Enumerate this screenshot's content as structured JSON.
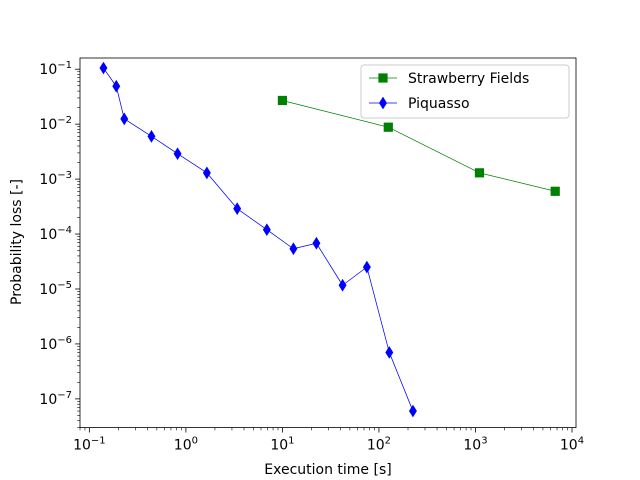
{
  "chart_data": {
    "type": "line",
    "title": "",
    "xlabel": "Execution time [s]",
    "ylabel": "Probability loss [-]",
    "xscale": "log",
    "yscale": "log",
    "xlim": [
      0.08,
      11000
    ],
    "ylim": [
      3e-08,
      0.16
    ],
    "xticks": [
      {
        "exp": -1,
        "base": "10",
        "sup": "−1"
      },
      {
        "exp": 0,
        "base": "10",
        "sup": "0"
      },
      {
        "exp": 1,
        "base": "10",
        "sup": "1"
      },
      {
        "exp": 2,
        "base": "10",
        "sup": "2"
      },
      {
        "exp": 3,
        "base": "10",
        "sup": "3"
      },
      {
        "exp": 4,
        "base": "10",
        "sup": "4"
      }
    ],
    "yticks": [
      {
        "exp": -7,
        "base": "10",
        "sup": "−7"
      },
      {
        "exp": -6,
        "base": "10",
        "sup": "−6"
      },
      {
        "exp": -5,
        "base": "10",
        "sup": "−5"
      },
      {
        "exp": -4,
        "base": "10",
        "sup": "−4"
      },
      {
        "exp": -3,
        "base": "10",
        "sup": "−3"
      },
      {
        "exp": -2,
        "base": "10",
        "sup": "−2"
      },
      {
        "exp": -1,
        "base": "10",
        "sup": "−1"
      }
    ],
    "legend_position": "top-right",
    "series": [
      {
        "name": "Strawberry Fields",
        "color": "#008000",
        "marker": "square",
        "x": [
          10,
          125,
          1100,
          6700
        ],
        "y": [
          0.027,
          0.0088,
          0.0013,
          0.0006
        ]
      },
      {
        "name": "Piquasso",
        "color": "#0000ff",
        "marker": "thin_diamond",
        "x": [
          0.14,
          0.19,
          0.23,
          0.44,
          0.82,
          1.65,
          3.4,
          6.9,
          13,
          22.5,
          42,
          75,
          128,
          225
        ],
        "y": [
          0.105,
          0.049,
          0.0125,
          0.006,
          0.0029,
          0.0013,
          0.00029,
          0.00012,
          5.4e-05,
          6.8e-05,
          1.17e-05,
          2.5e-05,
          7e-07,
          6e-08
        ]
      }
    ]
  }
}
